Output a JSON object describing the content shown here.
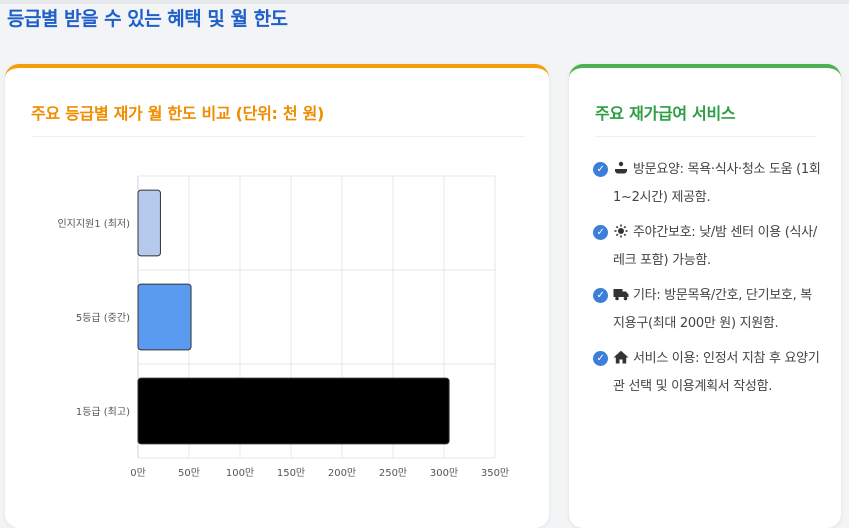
{
  "section": {
    "title": "등급별 받을 수 있는 혜택 및 월 한도"
  },
  "chart_card": {
    "title": "주요 등급별 재가 월 한도 비교 (단위: 천 원)"
  },
  "chart_data": {
    "type": "bar",
    "orientation": "horizontal",
    "categories": [
      "인지지원1 (최저)",
      "5등급 (중간)",
      "1등급 (최고)"
    ],
    "values": [
      220,
      520,
      3050
    ],
    "colors": [
      "#b4c9ec",
      "#5a9bf0",
      "#000000"
    ],
    "xlim": [
      0,
      3500
    ],
    "xticks": [
      0,
      500,
      1000,
      1500,
      2000,
      2500,
      3000,
      3500
    ],
    "xtick_labels": [
      "0만",
      "50만",
      "100만",
      "150만",
      "200만",
      "250만",
      "300만",
      "350만"
    ],
    "grid": true
  },
  "services_card": {
    "title": "주요 재가급여 서비스",
    "items": [
      {
        "icon": "bath-icon",
        "text": "방문요양: 목욕·식사·청소 도움 (1회 1~2시간) 제공함."
      },
      {
        "icon": "sun-icon",
        "text": "주야간보호: 낮/밤 센터 이용 (식사/레크 포함) 가능함."
      },
      {
        "icon": "truck-icon",
        "text": "기타: 방문목욕/간호, 단기보호, 복지용구(최대 200만 원) 지원함."
      },
      {
        "icon": "home-icon",
        "text": "서비스 이용: 인정서 지참 후 요양기관 선택 및 이용계획서 작성함."
      }
    ]
  }
}
